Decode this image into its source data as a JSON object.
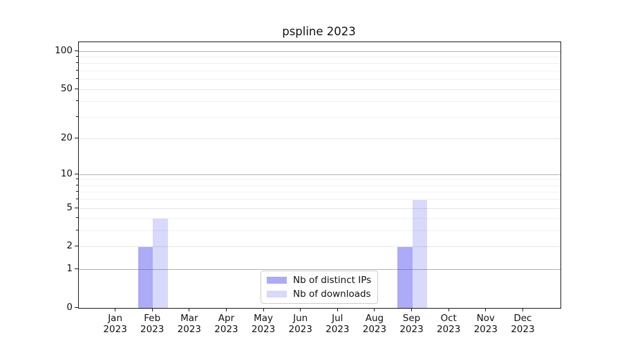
{
  "title": "pspline 2023",
  "chart_data": {
    "type": "bar",
    "title": "pspline 2023",
    "categories": [
      "Jan",
      "Feb",
      "Mar",
      "Apr",
      "May",
      "Jun",
      "Jul",
      "Aug",
      "Sep",
      "Oct",
      "Nov",
      "Dec"
    ],
    "category_year": "2023",
    "series": [
      {
        "name": "Nb of distinct IPs",
        "color": "rgba(45,45,235,0.40)",
        "values": [
          0,
          2,
          0,
          0,
          0,
          0,
          0,
          0,
          2,
          0,
          0,
          0
        ]
      },
      {
        "name": "Nb of downloads",
        "color": "rgba(45,45,235,0.18)",
        "values": [
          0,
          4,
          0,
          0,
          0,
          0,
          0,
          0,
          6,
          0,
          0,
          0
        ]
      }
    ],
    "y_axis": {
      "scale": "log1p",
      "ticks": [
        0,
        1,
        2,
        5,
        10,
        20,
        50,
        100
      ],
      "minor_ticks": [
        3,
        4,
        6,
        7,
        8,
        9,
        30,
        40,
        60,
        70,
        80,
        90
      ],
      "max": 118
    },
    "xlabel": "",
    "ylabel": "",
    "grid": true,
    "legend_position": "lower center",
    "colors": {
      "grid_power_of_ten": "#b2b2b2",
      "grid_major": "#e4e4e4",
      "grid_minor": "#f0f0f0",
      "axis": "#1a1a1a"
    }
  }
}
